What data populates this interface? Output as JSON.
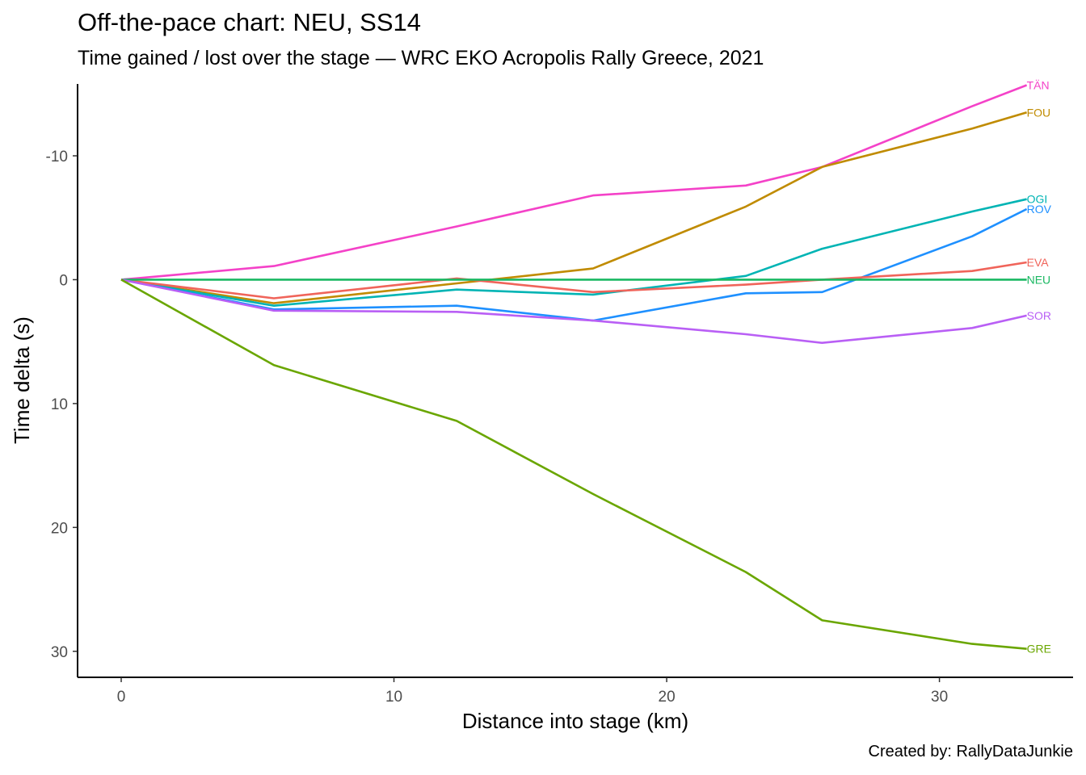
{
  "chart_data": {
    "type": "line",
    "title": "Off-the-pace chart: NEU, SS14",
    "subtitle": "Time gained / lost over the stage — WRC EKO Acropolis Rally Greece, 2021",
    "caption": "Created by: RallyDataJunkie",
    "xlabel": "Distance into stage (km)",
    "ylabel": "Time delta (s)",
    "xlim": [
      -1.6,
      34.9
    ],
    "ylim": [
      -15.8,
      32.1
    ],
    "y_reversed": true,
    "grid": false,
    "legend": "direct labels at line ends",
    "x_ticks": [
      {
        "value": 0,
        "label": "0"
      },
      {
        "value": 10,
        "label": "10"
      },
      {
        "value": 20,
        "label": "20"
      },
      {
        "value": 30,
        "label": "30"
      }
    ],
    "y_ticks": [
      {
        "value": -10,
        "label": "-10"
      },
      {
        "value": 0,
        "label": "0"
      },
      {
        "value": 10,
        "label": "10"
      },
      {
        "value": 20,
        "label": "20"
      },
      {
        "value": 30,
        "label": "30"
      }
    ],
    "series": [
      {
        "name": "TÄN",
        "color": "#f442c8",
        "points": [
          [
            0,
            0
          ],
          [
            5.6,
            -1.1
          ],
          [
            12.3,
            -4.3
          ],
          [
            17.3,
            -6.8
          ],
          [
            22.9,
            -7.6
          ],
          [
            25.7,
            -9.1
          ],
          [
            31.2,
            -14.0
          ],
          [
            33.2,
            -15.7
          ]
        ]
      },
      {
        "name": "FOU",
        "color": "#c08b00",
        "points": [
          [
            0,
            0
          ],
          [
            5.6,
            1.9
          ],
          [
            12.3,
            0.3
          ],
          [
            17.3,
            -0.9
          ],
          [
            22.9,
            -5.9
          ],
          [
            25.7,
            -9.1
          ],
          [
            31.2,
            -12.2
          ],
          [
            33.2,
            -13.5
          ]
        ]
      },
      {
        "name": "OGI",
        "color": "#00b4b4",
        "points": [
          [
            0,
            0
          ],
          [
            5.6,
            2.1
          ],
          [
            12.3,
            0.8
          ],
          [
            17.3,
            1.2
          ],
          [
            22.9,
            -0.3
          ],
          [
            25.7,
            -2.5
          ],
          [
            31.2,
            -5.5
          ],
          [
            33.2,
            -6.5
          ]
        ]
      },
      {
        "name": "ROV",
        "color": "#1e90ff",
        "points": [
          [
            0,
            0
          ],
          [
            5.6,
            2.4
          ],
          [
            12.3,
            2.1
          ],
          [
            17.3,
            3.3
          ],
          [
            22.9,
            1.1
          ],
          [
            25.7,
            1.0
          ],
          [
            31.2,
            -3.5
          ],
          [
            33.2,
            -5.7
          ]
        ]
      },
      {
        "name": "EVA",
        "color": "#f0645a",
        "points": [
          [
            0,
            0
          ],
          [
            5.6,
            1.5
          ],
          [
            12.3,
            -0.1
          ],
          [
            17.3,
            1.0
          ],
          [
            22.9,
            0.4
          ],
          [
            25.7,
            0.0
          ],
          [
            31.2,
            -0.7
          ],
          [
            33.2,
            -1.4
          ]
        ]
      },
      {
        "name": "NEU",
        "color": "#1ab862",
        "points": [
          [
            0,
            0
          ],
          [
            5.6,
            0
          ],
          [
            12.3,
            0
          ],
          [
            17.3,
            0
          ],
          [
            22.9,
            0
          ],
          [
            25.7,
            0
          ],
          [
            31.2,
            0
          ],
          [
            33.2,
            0
          ]
        ]
      },
      {
        "name": "SOR",
        "color": "#b95ff5",
        "points": [
          [
            0,
            0
          ],
          [
            5.6,
            2.5
          ],
          [
            12.3,
            2.6
          ],
          [
            17.3,
            3.3
          ],
          [
            22.9,
            4.4
          ],
          [
            25.7,
            5.1
          ],
          [
            31.2,
            3.9
          ],
          [
            33.2,
            2.9
          ]
        ]
      },
      {
        "name": "GRE",
        "color": "#6aa600",
        "points": [
          [
            0,
            0
          ],
          [
            5.6,
            6.9
          ],
          [
            12.3,
            11.4
          ],
          [
            17.3,
            17.3
          ],
          [
            22.9,
            23.6
          ],
          [
            25.7,
            27.5
          ],
          [
            31.2,
            29.4
          ],
          [
            33.2,
            29.8
          ]
        ]
      }
    ]
  }
}
